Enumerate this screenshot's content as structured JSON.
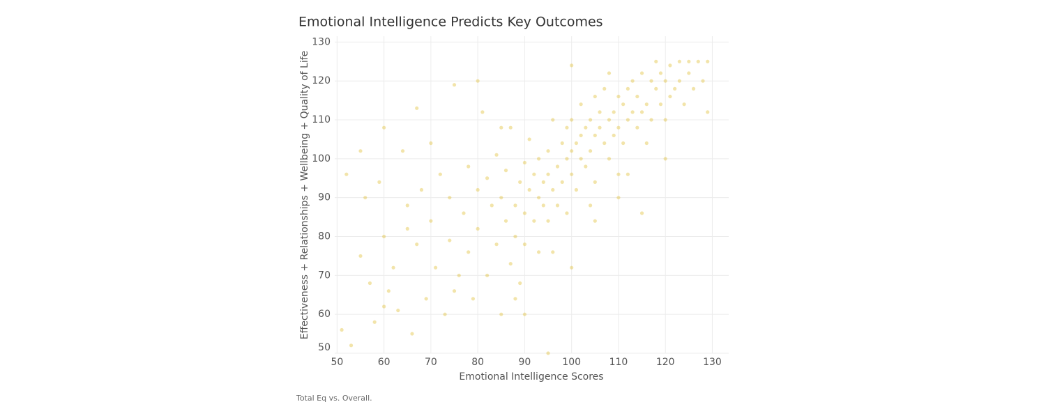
{
  "chart_data": {
    "type": "scatter",
    "title": "Emotional Intelligence Predicts Key Outcomes",
    "x_label": "Emotional Intelligence Scores",
    "y_label": "Effectiveness + Relationships + Wellbeing + Quality of Life",
    "caption": "Total Eq vs. Overall.",
    "color": "#e2c443",
    "grid": true,
    "xlim": [
      49.5,
      133.5
    ],
    "ylim": [
      50,
      131.5
    ],
    "xticks": [
      50,
      60,
      70,
      80,
      90,
      100,
      110,
      120,
      130
    ],
    "yticks": [
      50,
      60,
      70,
      80,
      90,
      100,
      110,
      120,
      130
    ],
    "x": [
      51,
      52,
      53,
      55,
      55,
      56,
      57,
      58,
      59,
      60,
      60,
      61,
      62,
      63,
      64,
      65,
      66,
      67,
      67,
      68,
      69,
      70,
      70,
      71,
      72,
      73,
      74,
      74,
      75,
      76,
      77,
      78,
      78,
      79,
      80,
      80,
      81,
      82,
      82,
      83,
      84,
      84,
      85,
      85,
      86,
      86,
      87,
      87,
      88,
      88,
      89,
      89,
      90,
      90,
      90,
      91,
      91,
      92,
      92,
      93,
      93,
      93,
      94,
      94,
      95,
      95,
      95,
      96,
      96,
      97,
      97,
      98,
      98,
      99,
      99,
      99,
      100,
      100,
      100,
      101,
      101,
      102,
      102,
      102,
      103,
      103,
      104,
      104,
      105,
      105,
      105,
      106,
      106,
      107,
      107,
      108,
      108,
      109,
      109,
      110,
      110,
      110,
      111,
      111,
      112,
      112,
      113,
      113,
      114,
      114,
      115,
      115,
      116,
      116,
      117,
      117,
      118,
      118,
      119,
      119,
      120,
      120,
      121,
      121,
      122,
      123,
      123,
      124,
      125,
      125,
      126,
      127,
      128,
      129,
      129,
      90,
      95,
      100,
      105,
      110,
      115,
      85,
      80,
      120,
      75,
      65,
      60,
      100,
      108,
      96,
      88,
      104,
      112
    ],
    "values": [
      56,
      96,
      52,
      75,
      102,
      90,
      68,
      58,
      94,
      108,
      80,
      66,
      72,
      61,
      102,
      88,
      55,
      113,
      78,
      92,
      64,
      104,
      84,
      72,
      96,
      60,
      90,
      79,
      119,
      70,
      86,
      98,
      76,
      64,
      92,
      82,
      112,
      70,
      95,
      88,
      78,
      101,
      60,
      90,
      84,
      97,
      73,
      108,
      88,
      80,
      94,
      68,
      99,
      86,
      78,
      92,
      105,
      84,
      96,
      90,
      100,
      76,
      94,
      88,
      102,
      96,
      84,
      110,
      92,
      98,
      88,
      104,
      94,
      100,
      108,
      86,
      102,
      96,
      110,
      104,
      92,
      106,
      100,
      114,
      108,
      98,
      110,
      102,
      106,
      116,
      94,
      108,
      112,
      104,
      118,
      110,
      100,
      112,
      106,
      116,
      108,
      96,
      114,
      104,
      118,
      110,
      112,
      120,
      108,
      116,
      122,
      112,
      114,
      104,
      120,
      110,
      118,
      125,
      114,
      122,
      120,
      110,
      124,
      116,
      118,
      125,
      120,
      114,
      125,
      122,
      118,
      125,
      120,
      112,
      125,
      60,
      50,
      72,
      84,
      90,
      86,
      108,
      120,
      100,
      66,
      82,
      62,
      124,
      122,
      76,
      64,
      88,
      96
    ]
  }
}
